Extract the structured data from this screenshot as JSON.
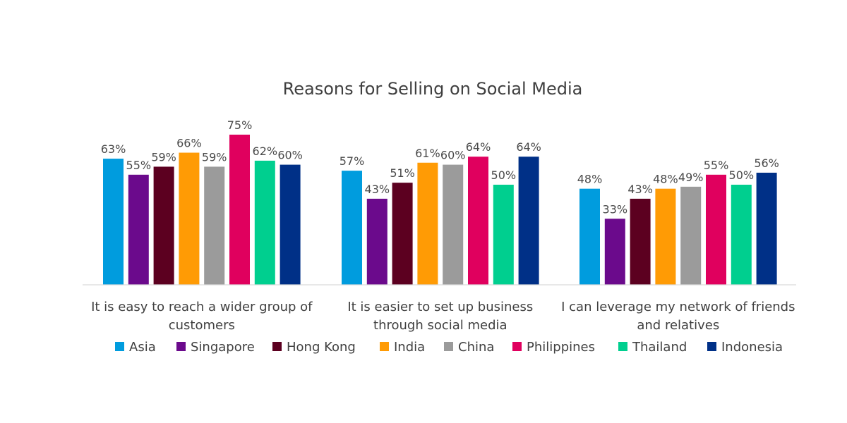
{
  "chart_data": {
    "type": "bar",
    "title": "Reasons for Selling on Social Media",
    "xlabel": "",
    "ylabel": "",
    "ylim": [
      0,
      80
    ],
    "grid": false,
    "legend_position": "bottom",
    "value_suffix": "%",
    "categories": [
      [
        "It is easy to reach a wider group of",
        "customers"
      ],
      [
        "It is easier to set up business",
        "through social media"
      ],
      [
        "I can leverage my network of friends",
        "and relatives"
      ]
    ],
    "series": [
      {
        "name": "Asia",
        "color": "#009cde",
        "values": [
          63,
          57,
          48
        ]
      },
      {
        "name": "Singapore",
        "color": "#6b0a8c",
        "values": [
          55,
          43,
          33
        ]
      },
      {
        "name": "Hong Kong",
        "color": "#5c0020",
        "values": [
          59,
          51,
          43
        ]
      },
      {
        "name": "India",
        "color": "#ff9b05",
        "values": [
          66,
          61,
          48
        ]
      },
      {
        "name": "China",
        "color": "#9b9b9b",
        "values": [
          59,
          60,
          49
        ]
      },
      {
        "name": "Philippines",
        "color": "#e0005e",
        "values": [
          75,
          64,
          55
        ]
      },
      {
        "name": "Thailand",
        "color": "#00cf8f",
        "values": [
          62,
          50,
          50
        ]
      },
      {
        "name": "Indonesia",
        "color": "#003087",
        "values": [
          60,
          64,
          56
        ]
      }
    ]
  }
}
